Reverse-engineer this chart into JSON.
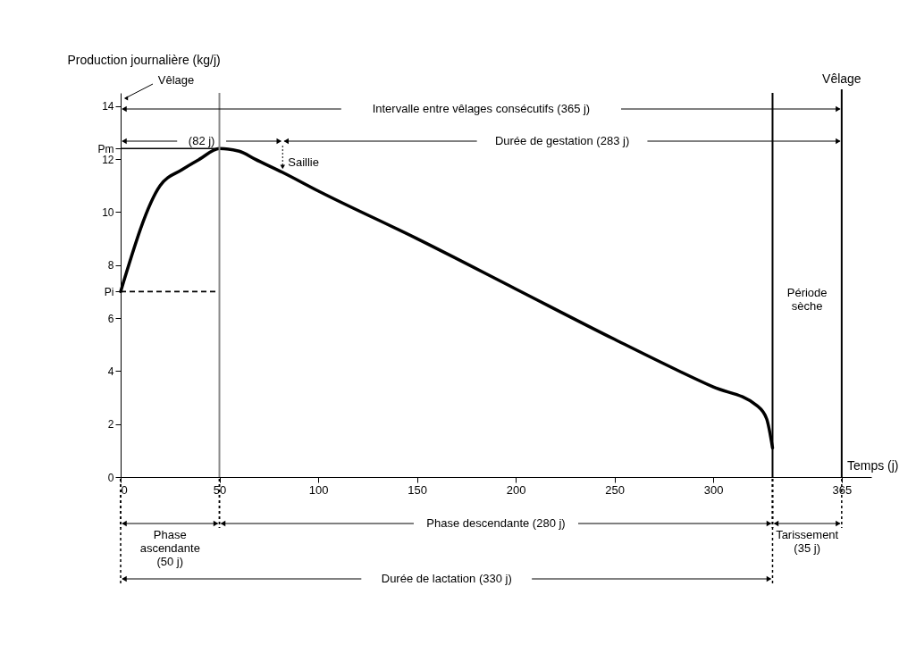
{
  "chart_data": {
    "type": "line",
    "xlabel": "Temps (j)",
    "ylabel": "Production journalière (kg/j)",
    "series": [
      {
        "color": "#000000",
        "x": [
          0,
          20,
          31,
          40,
          50,
          60,
          68,
          82,
          100,
          150,
          200,
          250,
          300,
          322,
          327,
          330
        ],
        "values": [
          7.0,
          11.0,
          11.6,
          12.0,
          12.4,
          12.3,
          12.0,
          11.5,
          10.8,
          9.0,
          7.1,
          5.2,
          3.4,
          2.7,
          2.2,
          1.1
        ]
      }
    ],
    "xlim": [
      0,
      380
    ],
    "xticks": [
      0,
      50,
      100,
      150,
      200,
      250,
      300,
      365
    ],
    "ylim": [
      0,
      14.5
    ],
    "yticks": [
      0,
      2,
      4,
      6,
      {
        "value": 7,
        "label": "Pi"
      },
      8,
      10,
      12,
      {
        "value": 12.4,
        "label": "Pm"
      },
      14
    ],
    "grid": false,
    "ref_lines": [
      {
        "axis": "y",
        "value": 12.4,
        "color": "#000000",
        "line_style": "solid"
      },
      {
        "axis": "y",
        "value": 7,
        "color": "#000000",
        "line_style": "dashed"
      },
      {
        "axis": "x",
        "value": 50,
        "color": "#888888"
      },
      {
        "axis": "x",
        "value": 330,
        "color": "#000000"
      },
      {
        "axis": "x",
        "value": 365,
        "label": "Vêlage",
        "color": "#000000"
      }
    ],
    "annotations": [
      "Vêlage",
      {
        "text": "Saillie",
        "x": 82,
        "y": 11.5
      },
      "Période sèche",
      "Intervalle entre vêlages consécutifs (365 j)",
      "(82 j)",
      "Durée de gestation (283 j)",
      "Phase ascendante (50 j)",
      "Phase descendante (280 j)",
      "Tarissement (35 j)",
      "Durée de lactation (330 j)"
    ]
  }
}
